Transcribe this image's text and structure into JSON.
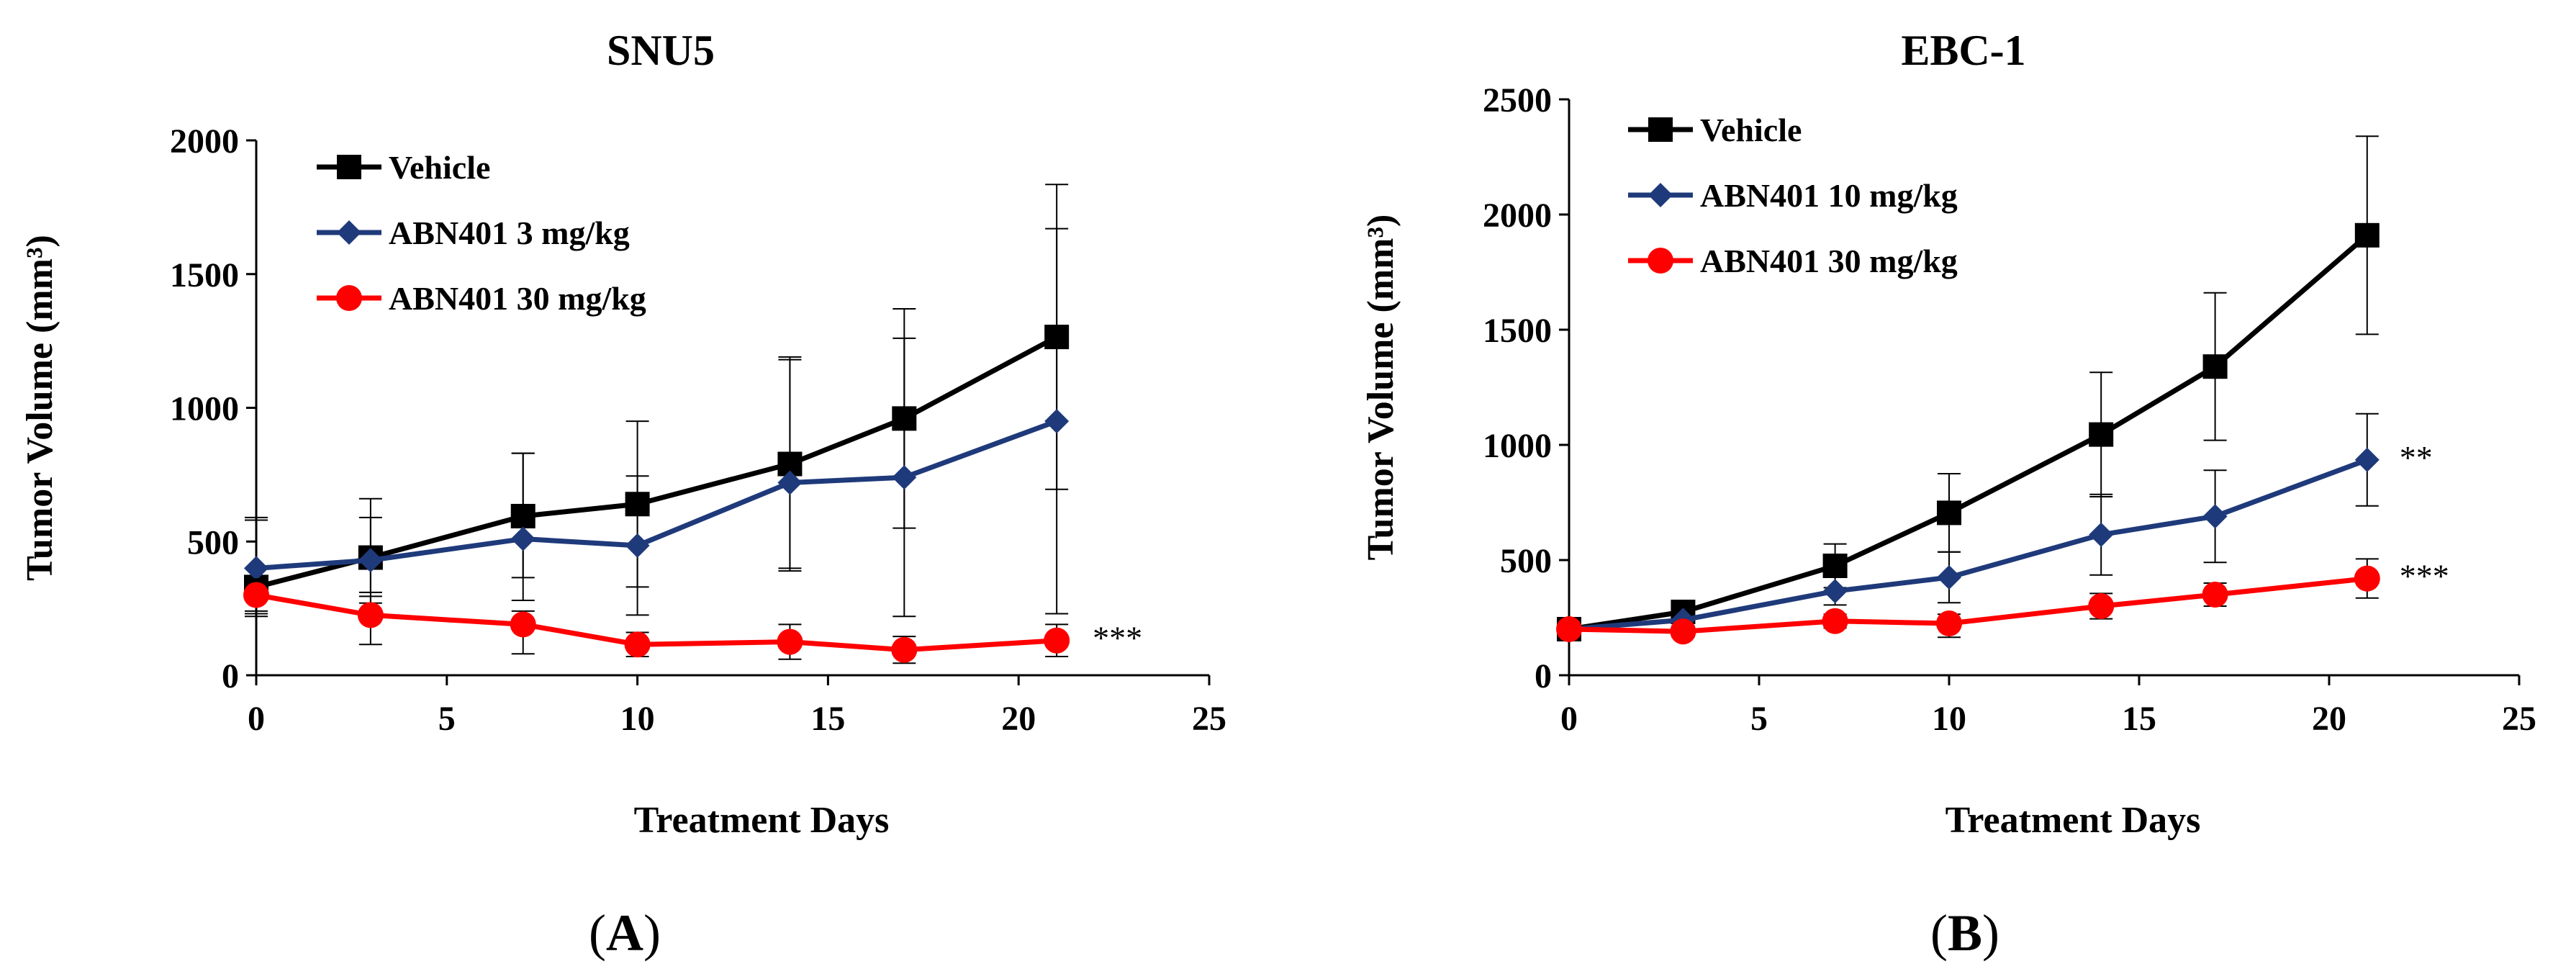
{
  "chart_data": [
    {
      "type": "line",
      "panel_label": "A",
      "title": "SNU5",
      "xlabel": "Treatment Days",
      "ylabel": "Tumor Volume (mm³)",
      "xlim": [
        0,
        25
      ],
      "ylim": [
        0,
        2000
      ],
      "xticks": [
        "0",
        "5",
        "10",
        "15",
        "20",
        "25"
      ],
      "yticks": [
        "0",
        "500",
        "1000",
        "1500",
        "2000"
      ],
      "legend_position": "top-left",
      "series": [
        {
          "name": "Vehicle",
          "color": "#000000",
          "marker": "square",
          "x": [
            0,
            3,
            7,
            10,
            14,
            17,
            21
          ],
          "values": [
            330,
            440,
            595,
            640,
            790,
            960,
            1265
          ],
          "err_up": [
            260,
            220,
            235,
            310,
            390,
            410,
            570
          ],
          "err_down": [
            100,
            130,
            230,
            310,
            390,
            410,
            570
          ],
          "annotation": ""
        },
        {
          "name": "ABN401 3 mg/kg",
          "color": "#1f3a7a",
          "marker": "diamond",
          "x": [
            0,
            3,
            7,
            10,
            14,
            17,
            21
          ],
          "values": [
            400,
            430,
            510,
            485,
            720,
            740,
            950
          ],
          "err_up": [
            180,
            160,
            320,
            260,
            470,
            520,
            720
          ],
          "err_down": [
            180,
            160,
            230,
            260,
            330,
            520,
            720
          ],
          "annotation": ""
        },
        {
          "name": "ABN401 30 mg/kg",
          "color": "#ff0000",
          "marker": "circle",
          "x": [
            0,
            3,
            7,
            10,
            14,
            17,
            21
          ],
          "values": [
            300,
            225,
            190,
            115,
            125,
            95,
            130
          ],
          "err_up": [
            60,
            70,
            50,
            45,
            65,
            50,
            60
          ],
          "err_down": [
            60,
            110,
            110,
            45,
            65,
            50,
            60
          ],
          "annotation": "***"
        }
      ]
    },
    {
      "type": "line",
      "panel_label": "B",
      "title": "EBC-1",
      "xlabel": "Treatment Days",
      "ylabel": "Tumor Volume (mm³)",
      "xlim": [
        0,
        25
      ],
      "ylim": [
        0,
        2500
      ],
      "xticks": [
        "0",
        "5",
        "10",
        "15",
        "20",
        "25"
      ],
      "yticks": [
        "0",
        "500",
        "1000",
        "1500",
        "2000",
        "2500"
      ],
      "legend_position": "top-left",
      "series": [
        {
          "name": "Vehicle",
          "color": "#000000",
          "marker": "square",
          "x": [
            0,
            3,
            7,
            10,
            14,
            17,
            21
          ],
          "values": [
            200,
            275,
            475,
            705,
            1045,
            1340,
            1910
          ],
          "err_up": [
            30,
            30,
            95,
            170,
            270,
            320,
            430
          ],
          "err_down": [
            30,
            30,
            95,
            170,
            270,
            320,
            430
          ],
          "annotation": ""
        },
        {
          "name": "ABN401 10 mg/kg",
          "color": "#1f3a7a",
          "marker": "diamond",
          "x": [
            0,
            3,
            7,
            10,
            14,
            17,
            21
          ],
          "values": [
            200,
            240,
            365,
            425,
            610,
            690,
            935
          ],
          "err_up": [
            25,
            25,
            60,
            110,
            175,
            200,
            200
          ],
          "err_down": [
            25,
            25,
            60,
            110,
            175,
            200,
            200
          ],
          "annotation": "**"
        },
        {
          "name": "ABN401 30 mg/kg",
          "color": "#ff0000",
          "marker": "circle",
          "x": [
            0,
            3,
            7,
            10,
            14,
            17,
            21
          ],
          "values": [
            200,
            190,
            235,
            225,
            300,
            350,
            420
          ],
          "err_up": [
            25,
            25,
            30,
            40,
            55,
            50,
            85
          ],
          "err_down": [
            25,
            25,
            30,
            60,
            55,
            50,
            85
          ],
          "annotation": "***"
        }
      ]
    }
  ]
}
